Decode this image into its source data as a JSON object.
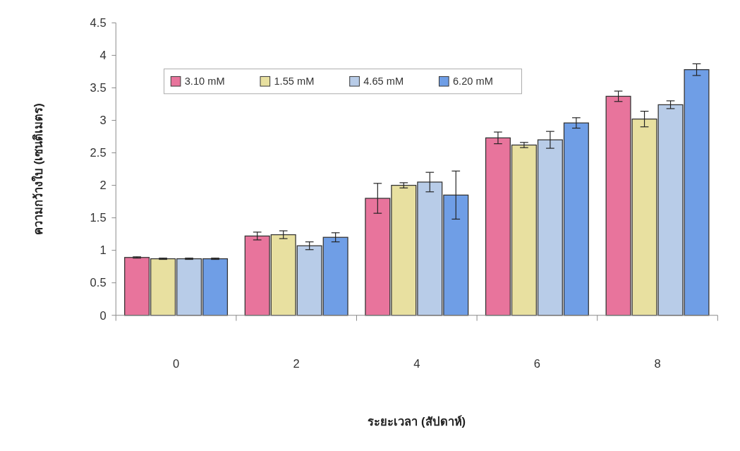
{
  "chart_data": {
    "type": "bar",
    "xlabel": "ระยะเวลา (สัปดาห์)",
    "ylabel": "ความกว้างใบ (เซนติเมตร)",
    "categories": [
      "0",
      "2",
      "4",
      "6",
      "8"
    ],
    "ylim": [
      0,
      4.5
    ],
    "yticks": [
      0,
      0.5,
      1,
      1.5,
      2,
      2.5,
      3,
      3.5,
      4,
      4.5
    ],
    "legend": "top",
    "grid": false,
    "series": [
      {
        "name": "3.10 mM",
        "color": "#e8749c",
        "values": [
          0.89,
          1.22,
          1.8,
          2.73,
          3.37
        ],
        "errors": [
          0.01,
          0.06,
          0.23,
          0.09,
          0.08
        ]
      },
      {
        "name": "1.55 mM",
        "color": "#e8e0a0",
        "values": [
          0.87,
          1.24,
          2.0,
          2.62,
          3.02
        ],
        "errors": [
          0.01,
          0.06,
          0.04,
          0.04,
          0.12
        ]
      },
      {
        "name": "4.65 mM",
        "color": "#b8cce8",
        "values": [
          0.87,
          1.07,
          2.05,
          2.7,
          3.24
        ],
        "errors": [
          0.01,
          0.06,
          0.15,
          0.13,
          0.06
        ]
      },
      {
        "name": "6.20 mM",
        "color": "#6f9ee6",
        "values": [
          0.87,
          1.2,
          1.85,
          2.96,
          3.78
        ],
        "errors": [
          0.01,
          0.07,
          0.37,
          0.08,
          0.09
        ]
      }
    ]
  }
}
